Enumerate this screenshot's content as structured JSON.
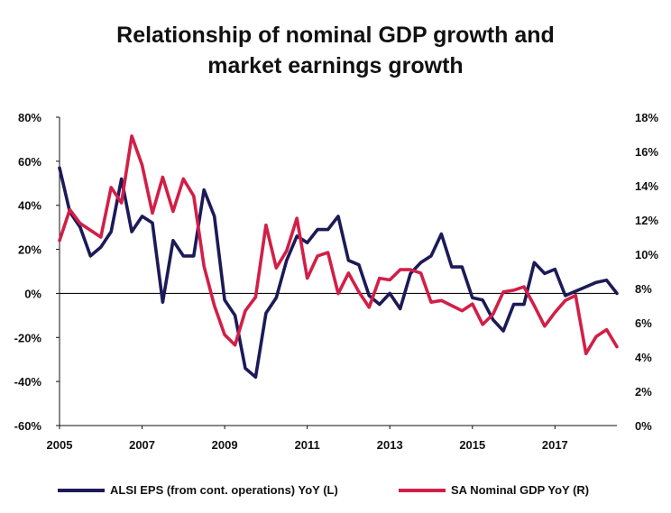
{
  "title_line1": "Relationship of nominal GDP growth and",
  "title_line2": "market earnings growth",
  "chart_data": {
    "type": "line",
    "x_range": [
      2005,
      2018.5
    ],
    "x_ticks": [
      "2005",
      "2007",
      "2009",
      "2011",
      "2013",
      "2015",
      "2017"
    ],
    "x_tick_values": [
      2005,
      2007,
      2009,
      2011,
      2013,
      2015,
      2017
    ],
    "y_left": {
      "min": -60,
      "max": 80,
      "ticks": [
        "80%",
        "60%",
        "40%",
        "20%",
        "0%",
        "-20%",
        "-40%",
        "-60%"
      ],
      "tick_values": [
        80,
        60,
        40,
        20,
        0,
        -20,
        -40,
        -60
      ]
    },
    "y_right": {
      "min": 0,
      "max": 18,
      "ticks": [
        "18%",
        "16%",
        "14%",
        "12%",
        "10%",
        "8%",
        "6%",
        "4%",
        "2%",
        "0%"
      ],
      "tick_values": [
        18,
        16,
        14,
        12,
        10,
        8,
        6,
        4,
        2,
        0
      ]
    },
    "series": [
      {
        "name": "ALSI EPS (from  cont. operations) YoY (L)",
        "axis": "left",
        "color": "#1c1a57",
        "points": [
          [
            2005.0,
            57
          ],
          [
            2005.25,
            37
          ],
          [
            2005.5,
            30
          ],
          [
            2005.75,
            17
          ],
          [
            2006.0,
            21
          ],
          [
            2006.25,
            28
          ],
          [
            2006.5,
            52
          ],
          [
            2006.75,
            28
          ],
          [
            2007.0,
            35
          ],
          [
            2007.25,
            32
          ],
          [
            2007.5,
            -4
          ],
          [
            2007.75,
            24
          ],
          [
            2008.0,
            17
          ],
          [
            2008.25,
            17
          ],
          [
            2008.5,
            47
          ],
          [
            2008.75,
            35
          ],
          [
            2009.0,
            -3
          ],
          [
            2009.25,
            -10
          ],
          [
            2009.5,
            -34
          ],
          [
            2009.75,
            -38
          ],
          [
            2010.0,
            -9
          ],
          [
            2010.25,
            -2
          ],
          [
            2010.5,
            15
          ],
          [
            2010.75,
            26
          ],
          [
            2011.0,
            23
          ],
          [
            2011.25,
            29
          ],
          [
            2011.5,
            29
          ],
          [
            2011.75,
            35
          ],
          [
            2012.0,
            15
          ],
          [
            2012.25,
            13
          ],
          [
            2012.5,
            -1
          ],
          [
            2012.75,
            -5
          ],
          [
            2013.0,
            0
          ],
          [
            2013.25,
            -7
          ],
          [
            2013.5,
            9
          ],
          [
            2013.75,
            14
          ],
          [
            2014.0,
            17
          ],
          [
            2014.25,
            27
          ],
          [
            2014.5,
            12
          ],
          [
            2014.75,
            12
          ],
          [
            2015.0,
            -2
          ],
          [
            2015.25,
            -3
          ],
          [
            2015.5,
            -12
          ],
          [
            2015.75,
            -17
          ],
          [
            2016.0,
            -5
          ],
          [
            2016.25,
            -5
          ],
          [
            2016.5,
            14
          ],
          [
            2016.75,
            9
          ],
          [
            2017.0,
            11
          ],
          [
            2017.25,
            -1
          ],
          [
            2017.5,
            1
          ],
          [
            2017.75,
            3
          ],
          [
            2018.0,
            5
          ],
          [
            2018.25,
            6
          ],
          [
            2018.5,
            0
          ]
        ]
      },
      {
        "name": "SA Nominal GDP YoY (R)",
        "axis": "right",
        "color": "#d21f47",
        "points": [
          [
            2005.0,
            10.8
          ],
          [
            2005.25,
            12.6
          ],
          [
            2005.5,
            11.8
          ],
          [
            2005.75,
            11.4
          ],
          [
            2006.0,
            11.0
          ],
          [
            2006.25,
            13.9
          ],
          [
            2006.5,
            13.0
          ],
          [
            2006.75,
            16.9
          ],
          [
            2007.0,
            15.2
          ],
          [
            2007.25,
            12.4
          ],
          [
            2007.5,
            14.5
          ],
          [
            2007.75,
            12.5
          ],
          [
            2008.0,
            14.4
          ],
          [
            2008.25,
            13.4
          ],
          [
            2008.5,
            9.3
          ],
          [
            2008.75,
            7.0
          ],
          [
            2009.0,
            5.3
          ],
          [
            2009.25,
            4.7
          ],
          [
            2009.5,
            6.7
          ],
          [
            2009.75,
            7.5
          ],
          [
            2010.0,
            11.7
          ],
          [
            2010.25,
            9.2
          ],
          [
            2010.5,
            10.2
          ],
          [
            2010.75,
            12.1
          ],
          [
            2011.0,
            8.6
          ],
          [
            2011.25,
            9.9
          ],
          [
            2011.5,
            10.1
          ],
          [
            2011.75,
            7.7
          ],
          [
            2012.0,
            8.9
          ],
          [
            2012.25,
            7.8
          ],
          [
            2012.5,
            6.9
          ],
          [
            2012.75,
            8.6
          ],
          [
            2013.0,
            8.5
          ],
          [
            2013.25,
            9.1
          ],
          [
            2013.5,
            9.1
          ],
          [
            2013.75,
            8.9
          ],
          [
            2014.0,
            7.2
          ],
          [
            2014.25,
            7.3
          ],
          [
            2014.5,
            7.0
          ],
          [
            2014.75,
            6.7
          ],
          [
            2015.0,
            7.1
          ],
          [
            2015.25,
            5.9
          ],
          [
            2015.5,
            6.5
          ],
          [
            2015.75,
            7.8
          ],
          [
            2016.0,
            7.9
          ],
          [
            2016.25,
            8.1
          ],
          [
            2016.5,
            7.0
          ],
          [
            2016.75,
            5.8
          ],
          [
            2017.0,
            6.6
          ],
          [
            2017.25,
            7.3
          ],
          [
            2017.5,
            7.6
          ],
          [
            2017.75,
            4.2
          ],
          [
            2018.0,
            5.2
          ],
          [
            2018.25,
            5.6
          ],
          [
            2018.5,
            4.6
          ]
        ]
      }
    ]
  }
}
